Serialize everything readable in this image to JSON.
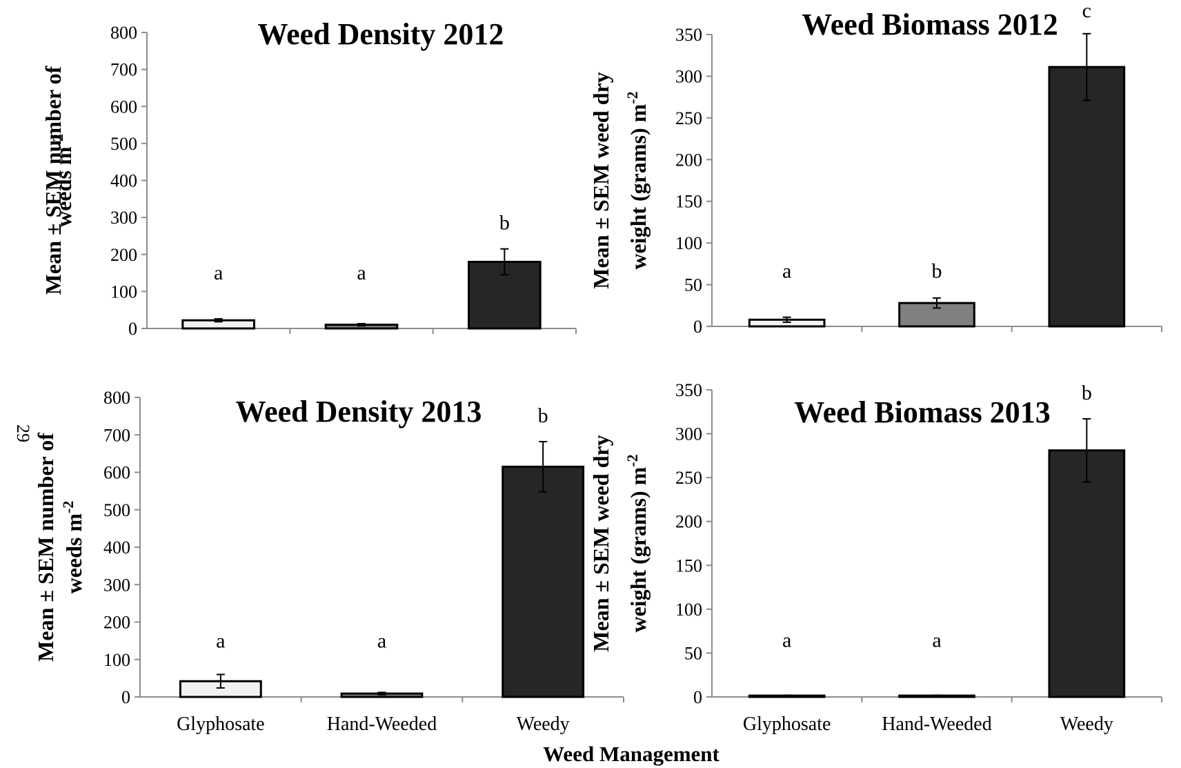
{
  "page_number": "29",
  "figure_xlabel": "Weed Management",
  "colors": {
    "Glyphosate": "#f2f2f2",
    "Hand-Weeded": "#808080",
    "Weedy": "#262626",
    "axis": "#8c8c8c"
  },
  "chart_data": [
    {
      "type": "bar",
      "title": "Weed Density 2012",
      "ylabel_lines": [
        "Mean ± SEM number of",
        "weeds m"
      ],
      "ylabel_superscript": "-2",
      "ylim": [
        0,
        800
      ],
      "yticks": [
        0,
        100,
        200,
        300,
        400,
        500,
        600,
        700,
        800
      ],
      "categories": [
        "Glyphosate",
        "Hand-Weeded",
        "Weedy"
      ],
      "show_category_labels": false,
      "values": [
        22,
        10,
        180
      ],
      "errors": [
        4,
        3,
        35
      ],
      "significance": [
        "a",
        "a",
        "b"
      ]
    },
    {
      "type": "bar",
      "title": "Weed Biomass 2012",
      "ylabel_lines": [
        "Mean ± SEM weed dry",
        "weight (grams) m"
      ],
      "ylabel_superscript": "-2",
      "ylim": [
        0,
        350
      ],
      "yticks": [
        0,
        50,
        100,
        150,
        200,
        250,
        300,
        350
      ],
      "categories": [
        "Glyphosate",
        "Hand-Weeded",
        "Weedy"
      ],
      "show_category_labels": false,
      "values": [
        8,
        28,
        311
      ],
      "errors": [
        3,
        6,
        40
      ],
      "significance": [
        "a",
        "b",
        "c"
      ]
    },
    {
      "type": "bar",
      "title": "Weed Density 2013",
      "ylabel_lines": [
        "Mean ± SEM number of",
        "weeds m"
      ],
      "ylabel_superscript": "-2",
      "ylim": [
        0,
        800
      ],
      "yticks": [
        0,
        100,
        200,
        300,
        400,
        500,
        600,
        700,
        800
      ],
      "categories": [
        "Glyphosate",
        "Hand-Weeded",
        "Weedy"
      ],
      "show_category_labels": true,
      "values": [
        42,
        9,
        615
      ],
      "errors": [
        18,
        3,
        67
      ],
      "significance": [
        "a",
        "a",
        "b"
      ]
    },
    {
      "type": "bar",
      "title": "Weed Biomass 2013",
      "ylabel_lines": [
        "Mean ± SEM weed dry",
        "weight (grams) m"
      ],
      "ylabel_superscript": "-2",
      "ylim": [
        0,
        350
      ],
      "yticks": [
        0,
        50,
        100,
        150,
        200,
        250,
        300,
        350
      ],
      "categories": [
        "Glyphosate",
        "Hand-Weeded",
        "Weedy"
      ],
      "show_category_labels": true,
      "values": [
        1.5,
        1.5,
        281
      ],
      "errors": [
        0.5,
        0.5,
        36
      ],
      "significance": [
        "a",
        "a",
        "b"
      ]
    }
  ]
}
